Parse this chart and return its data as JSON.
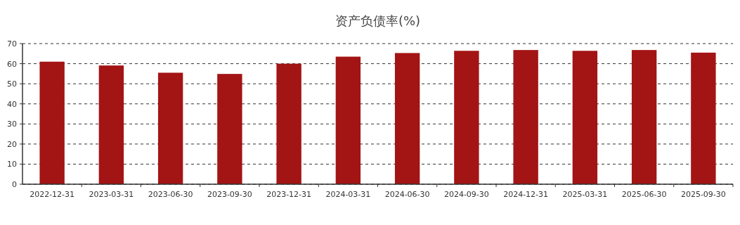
{
  "chart_data": {
    "type": "bar",
    "title": "资产负债率(%)",
    "categories": [
      "2022-12-31",
      "2023-03-31",
      "2023-06-30",
      "2023-09-30",
      "2023-12-31",
      "2024-03-31",
      "2024-06-30",
      "2024-09-30",
      "2024-12-31",
      "2025-03-31",
      "2025-06-30",
      "2025-09-30"
    ],
    "series": [
      {
        "color": "#a31414",
        "values": [
          61.0,
          59.1,
          55.5,
          54.9,
          60.0,
          63.5,
          65.3,
          66.4,
          66.8,
          66.4,
          66.8,
          65.5
        ]
      }
    ],
    "ylim": [
      0,
      70
    ],
    "yticks": [
      0,
      10,
      20,
      30,
      40,
      50,
      60,
      70
    ],
    "grid": "y"
  }
}
